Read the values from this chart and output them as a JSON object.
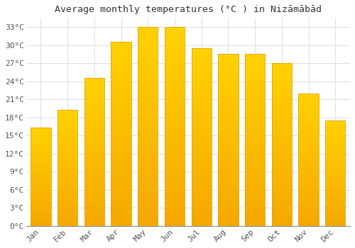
{
  "title": "Average monthly temperatures (°C ) in Nizāmābād",
  "months": [
    "Jan",
    "Feb",
    "Mar",
    "Apr",
    "May",
    "Jun",
    "Jul",
    "Aug",
    "Sep",
    "Oct",
    "Nov",
    "Dec"
  ],
  "values": [
    16.3,
    19.2,
    24.5,
    30.5,
    33.0,
    33.0,
    29.5,
    28.5,
    28.5,
    27.0,
    22.0,
    17.5
  ],
  "bar_color_top": "#FFD200",
  "bar_color_bottom": "#F5A800",
  "bar_edge_color": "#E8A000",
  "background_color": "#FFFFFF",
  "grid_color": "#DDDDDD",
  "yticks": [
    0,
    3,
    6,
    9,
    12,
    15,
    18,
    21,
    24,
    27,
    30,
    33
  ],
  "ylim": [
    0,
    34.5
  ],
  "title_fontsize": 9.5,
  "tick_fontsize": 8,
  "font_family": "monospace"
}
